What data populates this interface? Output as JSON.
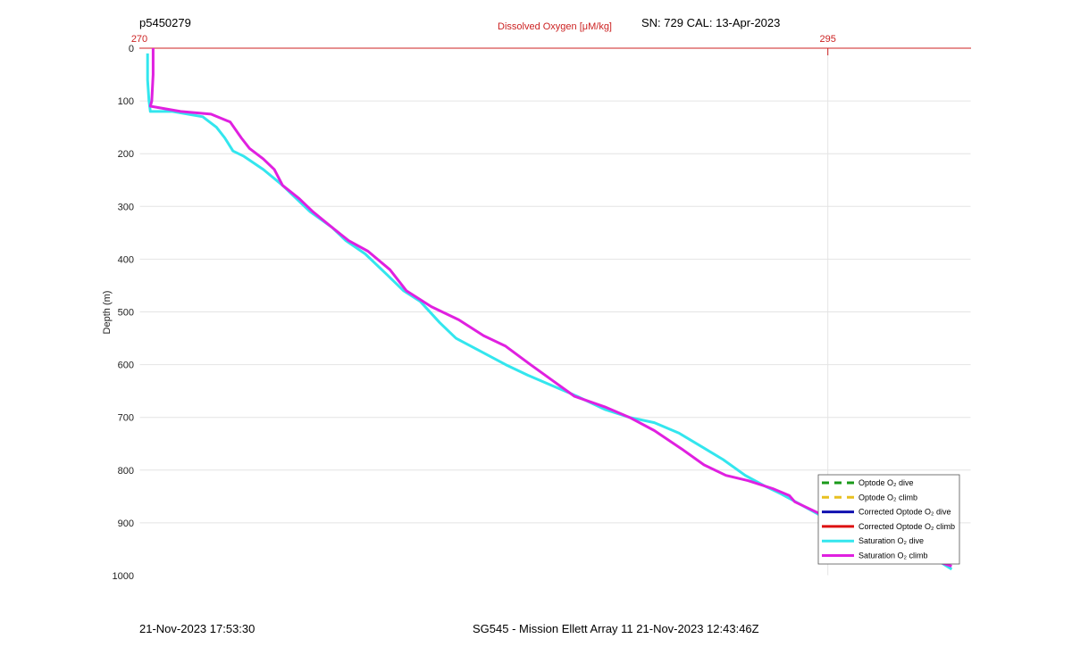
{
  "header": {
    "left": "p5450279",
    "right": "SN: 729  CAL: 13-Apr-2023"
  },
  "footer": {
    "left": "21-Nov-2023 17:53:30",
    "center": "SG545 - Mission Ellett Array 11 21-Nov-2023 12:43:46Z"
  },
  "chart_data": {
    "type": "line",
    "title": "",
    "top_axis": {
      "label": "Dissolved Oxygen [μM/kg]",
      "ticks": [
        "270",
        "295"
      ],
      "range": [
        270,
        300.2
      ],
      "color": "#cc2222"
    },
    "ylabel": "Depth (m)",
    "ylim": [
      0,
      1000
    ],
    "y_reversed": true,
    "yticks": [
      "0",
      "100",
      "200",
      "300",
      "400",
      "500",
      "600",
      "700",
      "800",
      "900",
      "1000"
    ],
    "grid": true,
    "legend": {
      "placement": "bottom-right",
      "entries": [
        {
          "label": "Optode O₂ dive",
          "color": "#1a9a1a",
          "style": "dashed"
        },
        {
          "label": "Optode O₂ climb",
          "color": "#e8c020",
          "style": "dashed"
        },
        {
          "label": "Corrected Optode O₂ dive",
          "color": "#1010b0",
          "style": "solid"
        },
        {
          "label": "Corrected Optode O₂ climb",
          "color": "#dd1111",
          "style": "solid"
        },
        {
          "label": "Saturation O₂ dive",
          "color": "#33e6ee",
          "style": "solid"
        },
        {
          "label": "Saturation O₂ climb",
          "color": "#e020e0",
          "style": "solid"
        }
      ]
    },
    "series": [
      {
        "name": "Saturation O₂ dive",
        "color": "#33e6ee",
        "x": [
          270.3,
          270.3,
          270.35,
          270.4,
          271.2,
          272.3,
          272.8,
          273.1,
          273.4,
          273.8,
          274.5,
          275.2,
          275.6,
          276.2,
          277.0,
          277.5,
          278.2,
          279.0,
          279.6,
          280.2,
          280.9,
          281.5,
          282.4,
          283.3,
          284.1,
          285.0,
          285.9,
          286.9,
          287.8,
          288.7,
          289.6,
          290.4,
          291.2,
          292.0,
          292.7,
          293.3,
          294.0,
          294.7,
          295.3,
          295.9,
          296.6,
          297.6,
          298.5,
          299.1,
          299.5
        ],
        "y": [
          10,
          60,
          100,
          120,
          120,
          130,
          150,
          170,
          195,
          205,
          230,
          260,
          280,
          310,
          340,
          365,
          390,
          430,
          460,
          480,
          520,
          550,
          575,
          600,
          620,
          640,
          660,
          685,
          700,
          710,
          730,
          755,
          780,
          810,
          830,
          845,
          865,
          885,
          900,
          920,
          940,
          955,
          965,
          975,
          988
        ]
      },
      {
        "name": "Saturation O₂ climb",
        "color": "#e020e0",
        "x": [
          270.5,
          270.5,
          270.45,
          270.4,
          271.5,
          272.6,
          273.3,
          273.7,
          274.0,
          274.5,
          274.9,
          275.2,
          275.8,
          276.3,
          277.0,
          277.6,
          278.3,
          279.1,
          279.7,
          280.6,
          281.6,
          282.5,
          283.3,
          284.2,
          285.0,
          285.8,
          286.9,
          287.8,
          288.7,
          289.7,
          290.5,
          291.3,
          292.1,
          293.0,
          293.6,
          293.8,
          294.2,
          294.8,
          295.5,
          296.2,
          297.0,
          297.9,
          298.8,
          299.5
        ],
        "y": [
          0,
          50,
          100,
          110,
          120,
          125,
          140,
          170,
          190,
          210,
          230,
          260,
          285,
          310,
          340,
          365,
          385,
          420,
          460,
          490,
          515,
          545,
          565,
          600,
          630,
          660,
          680,
          700,
          725,
          760,
          790,
          810,
          820,
          835,
          848,
          860,
          870,
          885,
          900,
          920,
          940,
          955,
          970,
          982
        ]
      }
    ]
  }
}
